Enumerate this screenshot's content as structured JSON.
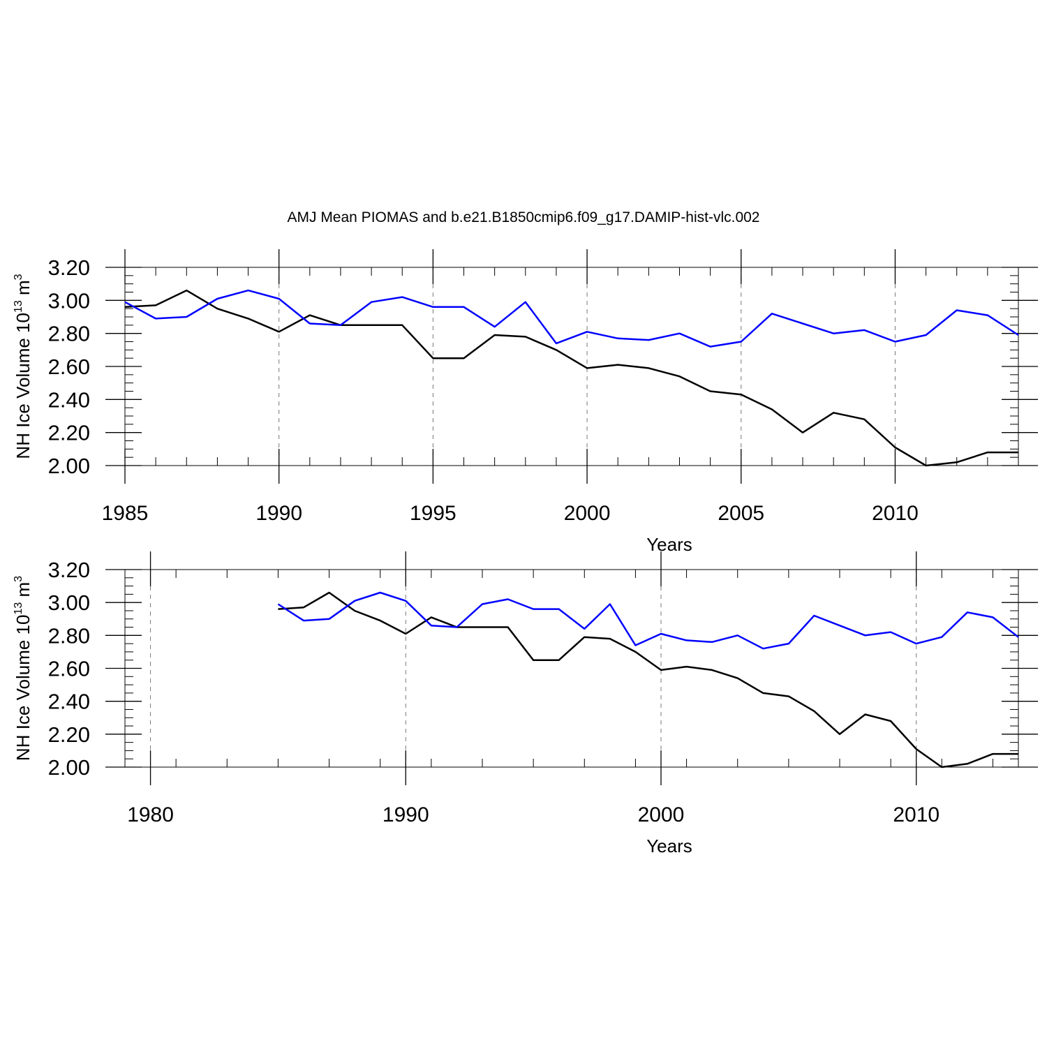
{
  "figure": {
    "title": "AMJ Mean PIOMAS and b.e21.B1850cmip6.f09_g17.DAMIP-hist-vlc.002"
  },
  "chart_data": [
    {
      "type": "line",
      "title": "AMJ Mean PIOMAS and b.e21.B1850cmip6.f09_g17.DAMIP-hist-vlc.002",
      "xlabel": "Years",
      "ylabel_main": "NH Ice Volume 10",
      "ylabel_exp": "13",
      "ylabel_unit": "m",
      "ylabel_unit_exp": "3",
      "xlim": [
        1985,
        2014
      ],
      "ylim": [
        2.0,
        3.2
      ],
      "xticks": [
        1985,
        1990,
        1995,
        2000,
        2005,
        2010
      ],
      "xtick_labels": [
        "1985",
        "1990",
        "1995",
        "2000",
        "2005",
        "2010"
      ],
      "yticks": [
        2.0,
        2.2,
        2.4,
        2.6,
        2.8,
        3.0,
        3.2
      ],
      "ytick_labels": [
        "2.00",
        "2.20",
        "2.40",
        "2.60",
        "2.80",
        "3.00",
        "3.20"
      ],
      "grid": "vertical dashed at major x ticks",
      "x": [
        1985,
        1986,
        1987,
        1988,
        1989,
        1990,
        1991,
        1992,
        1993,
        1994,
        1995,
        1996,
        1997,
        1998,
        1999,
        2000,
        2001,
        2002,
        2003,
        2004,
        2005,
        2006,
        2007,
        2008,
        2009,
        2010,
        2011,
        2012,
        2013,
        2014
      ],
      "series": [
        {
          "color": "#000000",
          "values": [
            2.96,
            2.97,
            3.06,
            2.95,
            2.89,
            2.81,
            2.91,
            2.85,
            2.85,
            2.85,
            2.65,
            2.65,
            2.79,
            2.78,
            2.7,
            2.59,
            2.61,
            2.59,
            2.54,
            2.45,
            2.43,
            2.34,
            2.2,
            2.32,
            2.28,
            2.11,
            2.0,
            2.02,
            2.08,
            2.08
          ]
        },
        {
          "color": "#0000ff",
          "values": [
            2.99,
            2.89,
            2.9,
            3.01,
            3.06,
            3.01,
            2.86,
            2.85,
            2.99,
            3.02,
            2.96,
            2.96,
            2.84,
            2.99,
            2.74,
            2.81,
            2.77,
            2.76,
            2.8,
            2.72,
            2.75,
            2.92,
            2.86,
            2.8,
            2.82,
            2.75,
            2.79,
            2.94,
            2.91,
            2.79
          ]
        }
      ]
    },
    {
      "type": "line",
      "xlabel": "Years",
      "ylabel_main": "NH Ice Volume 10",
      "ylabel_exp": "13",
      "ylabel_unit": "m",
      "ylabel_unit_exp": "3",
      "xlim": [
        1979,
        2014
      ],
      "ylim": [
        2.0,
        3.2
      ],
      "xticks": [
        1980,
        1990,
        2000,
        2010
      ],
      "xtick_labels": [
        "1980",
        "1990",
        "2000",
        "2010"
      ],
      "yticks": [
        2.0,
        2.2,
        2.4,
        2.6,
        2.8,
        3.0,
        3.2
      ],
      "ytick_labels": [
        "2.00",
        "2.20",
        "2.40",
        "2.60",
        "2.80",
        "3.00",
        "3.20"
      ],
      "grid": "vertical dashed at major x ticks",
      "x": [
        1985,
        1986,
        1987,
        1988,
        1989,
        1990,
        1991,
        1992,
        1993,
        1994,
        1995,
        1996,
        1997,
        1998,
        1999,
        2000,
        2001,
        2002,
        2003,
        2004,
        2005,
        2006,
        2007,
        2008,
        2009,
        2010,
        2011,
        2012,
        2013,
        2014
      ],
      "series": [
        {
          "color": "#000000",
          "values": [
            2.96,
            2.97,
            3.06,
            2.95,
            2.89,
            2.81,
            2.91,
            2.85,
            2.85,
            2.85,
            2.65,
            2.65,
            2.79,
            2.78,
            2.7,
            2.59,
            2.61,
            2.59,
            2.54,
            2.45,
            2.43,
            2.34,
            2.2,
            2.32,
            2.28,
            2.11,
            2.0,
            2.02,
            2.08,
            2.08
          ]
        },
        {
          "color": "#0000ff",
          "values": [
            2.99,
            2.89,
            2.9,
            3.01,
            3.06,
            3.01,
            2.86,
            2.85,
            2.99,
            3.02,
            2.96,
            2.96,
            2.84,
            2.99,
            2.74,
            2.81,
            2.77,
            2.76,
            2.8,
            2.72,
            2.75,
            2.92,
            2.86,
            2.8,
            2.82,
            2.75,
            2.79,
            2.94,
            2.91,
            2.79
          ]
        }
      ]
    }
  ]
}
